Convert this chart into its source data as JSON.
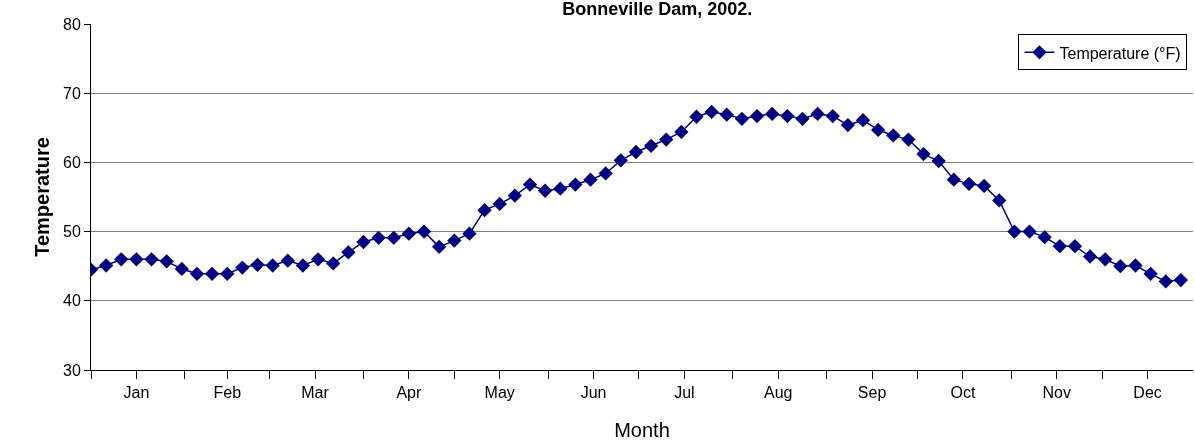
{
  "chart_data": {
    "type": "line",
    "title": "Bonneville Dam, 2002.",
    "xlabel": "Month",
    "ylabel": "Temperature",
    "x": [
      "2002-01-01",
      "2002-01-06",
      "2002-01-11",
      "2002-01-16",
      "2002-01-21",
      "2002-01-26",
      "2002-01-31",
      "2002-02-05",
      "2002-02-10",
      "2002-02-15",
      "2002-02-20",
      "2002-02-25",
      "2002-03-02",
      "2002-03-07",
      "2002-03-12",
      "2002-03-17",
      "2002-03-22",
      "2002-03-27",
      "2002-04-01",
      "2002-04-06",
      "2002-04-11",
      "2002-04-16",
      "2002-04-21",
      "2002-04-26",
      "2002-05-01",
      "2002-05-06",
      "2002-05-11",
      "2002-05-16",
      "2002-05-21",
      "2002-05-26",
      "2002-05-31",
      "2002-06-05",
      "2002-06-10",
      "2002-06-15",
      "2002-06-20",
      "2002-06-25",
      "2002-06-30",
      "2002-07-05",
      "2002-07-10",
      "2002-07-15",
      "2002-07-20",
      "2002-07-25",
      "2002-07-30",
      "2002-08-04",
      "2002-08-09",
      "2002-08-14",
      "2002-08-19",
      "2002-08-24",
      "2002-08-29",
      "2002-09-03",
      "2002-09-08",
      "2002-09-13",
      "2002-09-18",
      "2002-09-23",
      "2002-09-28",
      "2002-10-03",
      "2002-10-08",
      "2002-10-13",
      "2002-10-18",
      "2002-10-23",
      "2002-10-28",
      "2002-11-02",
      "2002-11-07",
      "2002-11-12",
      "2002-11-17",
      "2002-11-22",
      "2002-11-27",
      "2002-12-02",
      "2002-12-07",
      "2002-12-12",
      "2002-12-17",
      "2002-12-22",
      "2002-12-27"
    ],
    "series": [
      {
        "name": "Temperature (°F)",
        "color": "#000080",
        "values": [
          44.5,
          45.1,
          46.0,
          46.0,
          46.0,
          45.7,
          44.6,
          43.9,
          43.9,
          43.9,
          44.8,
          45.2,
          45.1,
          45.8,
          45.1,
          46.0,
          45.4,
          47.0,
          48.5,
          49.1,
          49.1,
          49.7,
          50.0,
          47.8,
          48.7,
          49.7,
          53.1,
          54.0,
          55.2,
          56.8,
          55.9,
          56.2,
          56.8,
          57.5,
          58.4,
          60.3,
          61.5,
          62.4,
          63.3,
          64.4,
          66.6,
          67.3,
          66.9,
          66.3,
          66.7,
          67.0,
          66.7,
          66.3,
          67.0,
          66.7,
          65.4,
          66.1,
          64.7,
          63.9,
          63.3,
          61.2,
          60.2,
          57.5,
          56.9,
          56.6,
          54.5,
          50.0,
          50.0,
          49.2,
          47.9,
          47.9,
          46.4,
          46.0,
          45.0,
          45.1,
          43.9,
          42.8,
          43.0
        ]
      }
    ],
    "xlim": [
      "2002-01-01",
      "2002-12-31"
    ],
    "xticks": [
      {
        "value": "2002-01-01",
        "label": null
      },
      {
        "value": "2002-01-16",
        "label": "Jan"
      },
      {
        "value": "2002-02-01",
        "label": null
      },
      {
        "value": "2002-02-15",
        "label": "Feb"
      },
      {
        "value": "2002-03-01",
        "label": null
      },
      {
        "value": "2002-03-16",
        "label": "Mar"
      },
      {
        "value": "2002-04-01",
        "label": null
      },
      {
        "value": "2002-04-16",
        "label": "Apr"
      },
      {
        "value": "2002-05-01",
        "label": null
      },
      {
        "value": "2002-05-16",
        "label": "May"
      },
      {
        "value": "2002-06-01",
        "label": null
      },
      {
        "value": "2002-06-16",
        "label": "Jun"
      },
      {
        "value": "2002-07-01",
        "label": null
      },
      {
        "value": "2002-07-16",
        "label": "Jul"
      },
      {
        "value": "2002-08-01",
        "label": null
      },
      {
        "value": "2002-08-16",
        "label": "Aug"
      },
      {
        "value": "2002-09-01",
        "label": null
      },
      {
        "value": "2002-09-16",
        "label": "Sep"
      },
      {
        "value": "2002-10-01",
        "label": null
      },
      {
        "value": "2002-10-16",
        "label": "Oct"
      },
      {
        "value": "2002-11-01",
        "label": null
      },
      {
        "value": "2002-11-16",
        "label": "Nov"
      },
      {
        "value": "2002-12-01",
        "label": null
      },
      {
        "value": "2002-12-16",
        "label": "Dec"
      }
    ],
    "ylim": [
      30,
      80
    ],
    "yticks": [
      30,
      40,
      50,
      60,
      70,
      80
    ],
    "grid": "y",
    "legend": "top right",
    "marker": "diamond",
    "line_style": "solid"
  }
}
